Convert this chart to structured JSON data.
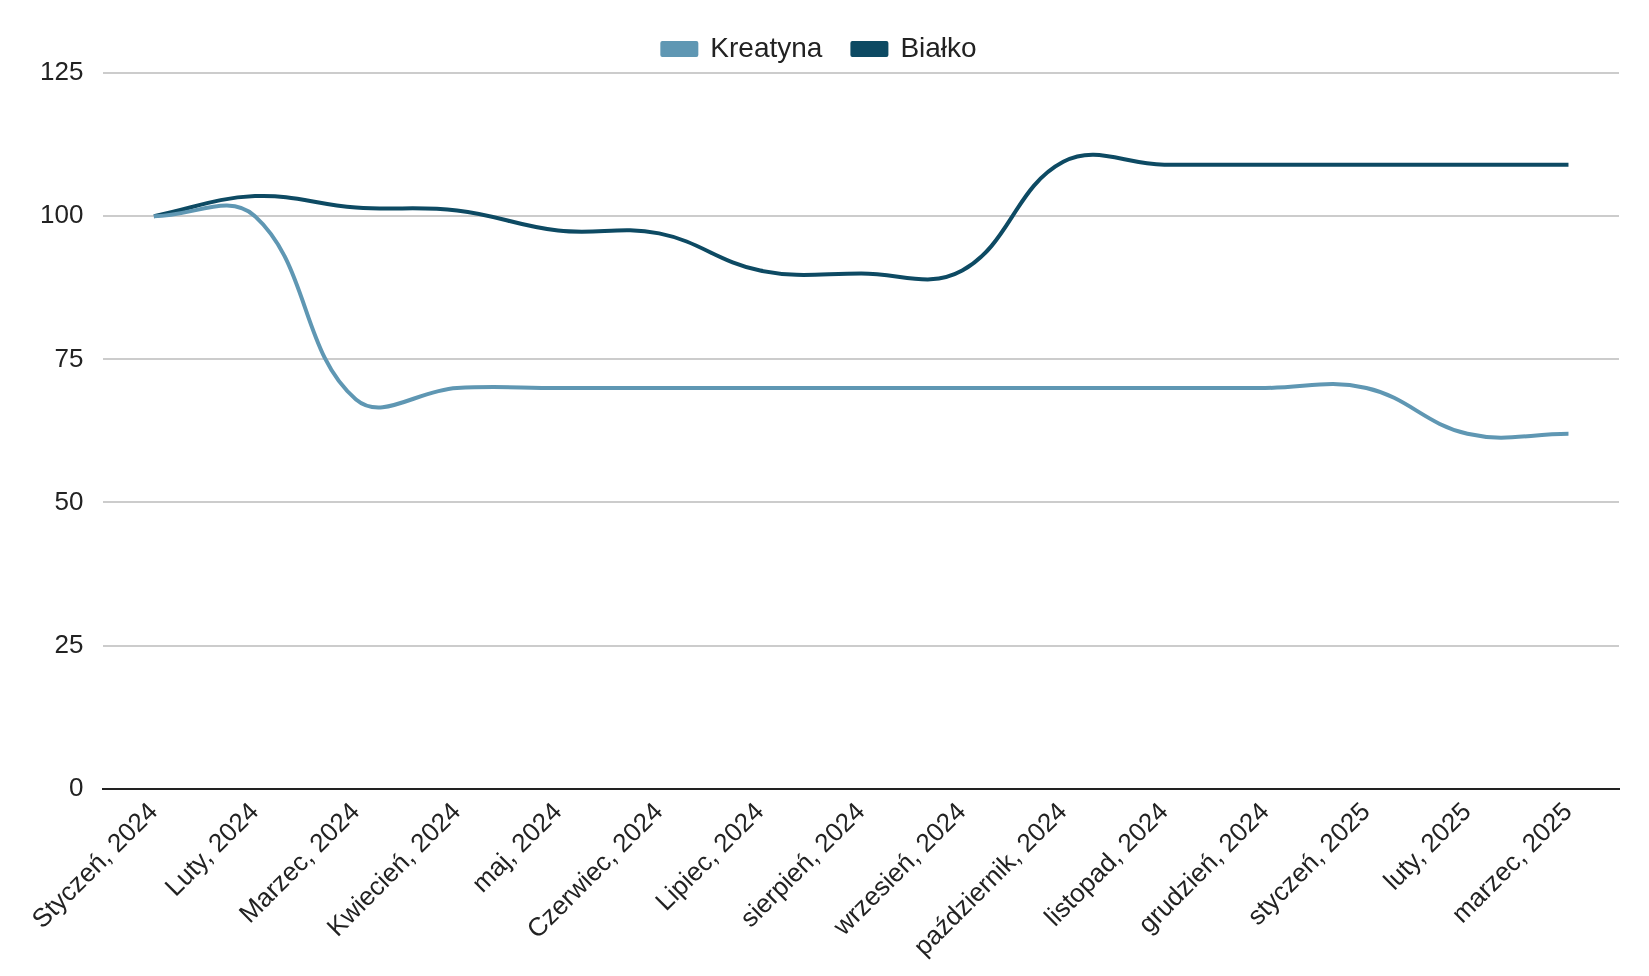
{
  "chart_data": {
    "type": "line",
    "categories": [
      "Styczeń, 2024",
      "Luty, 2024",
      "Marzec, 2024",
      "Kwiecień, 2024",
      "maj, 2024",
      "Czerwiec, 2024",
      "Lipiec, 2024",
      "sierpień, 2024",
      "wrzesień, 2024",
      "październik, 2024",
      "listopad, 2024",
      "grudzień, 2024",
      "styczeń, 2025",
      "luty, 2025",
      "marzec, 2025"
    ],
    "series": [
      {
        "name": "Kreatyna",
        "color": "#5f97b3",
        "values": [
          100,
          100,
          68,
          70,
          70,
          70,
          70,
          70,
          70,
          70,
          70,
          70,
          70,
          62,
          62
        ]
      },
      {
        "name": "Białko",
        "color": "#0d4a63",
        "values": [
          100,
          103.5,
          101.5,
          101,
          97.5,
          97,
          90.5,
          90,
          90.5,
          109.5,
          109,
          109,
          109,
          109,
          109
        ]
      }
    ],
    "ylim": [
      0,
      125
    ],
    "yticks": [
      0,
      25,
      50,
      75,
      100,
      125
    ],
    "grid": "y",
    "legend": "top",
    "marker": "none",
    "line_style": "solid"
  }
}
